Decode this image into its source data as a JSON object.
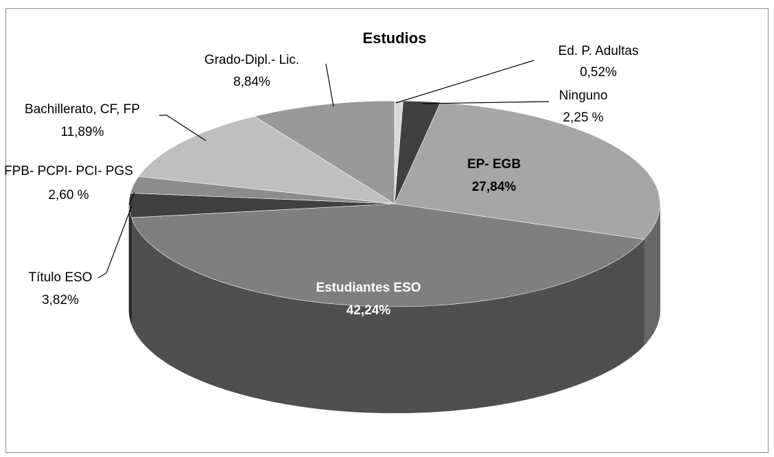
{
  "chart_data": {
    "type": "pie",
    "title": "Estudios",
    "categories": [
      "Ed. P. Adultas",
      "Ninguno",
      "EP- EGB",
      "Estudiantes ESO",
      "Título ESO",
      "FPB- PCPI- PCI- PGS",
      "Bachillerato, CF, FP",
      "Grado-Dipl.- Lic."
    ],
    "values": [
      0.52,
      2.25,
      27.84,
      42.24,
      3.82,
      2.6,
      11.89,
      8.84
    ],
    "value_labels": [
      "0,52%",
      "2,25 %",
      "27,84%",
      "42,24%",
      "3,82%",
      "2,60 %",
      "11,89%",
      "8,84%"
    ],
    "colors": [
      "#d9d9d9",
      "#404040",
      "#a6a6a6",
      "#7f7f7f",
      "#404040",
      "#8c8c8c",
      "#bfbfbf",
      "#999999"
    ]
  }
}
